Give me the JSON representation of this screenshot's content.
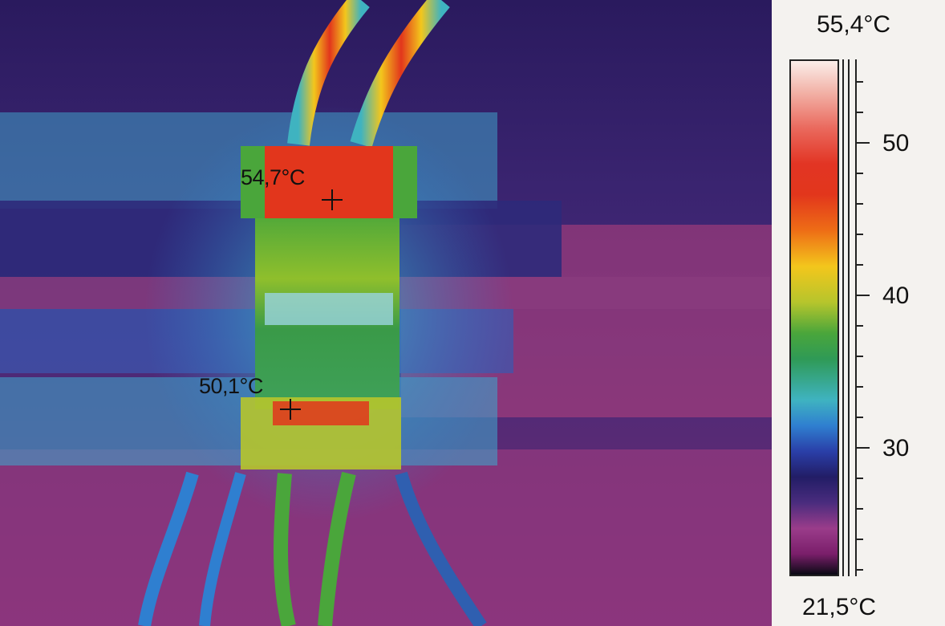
{
  "thermal_image": {
    "spot_markers": [
      {
        "label": "54,7°C"
      },
      {
        "label": "50,1°C"
      }
    ]
  },
  "color_scale": {
    "max_label": "55,4°C",
    "min_label": "21,5°C",
    "tick_labels": [
      "50",
      "40",
      "30"
    ]
  }
}
